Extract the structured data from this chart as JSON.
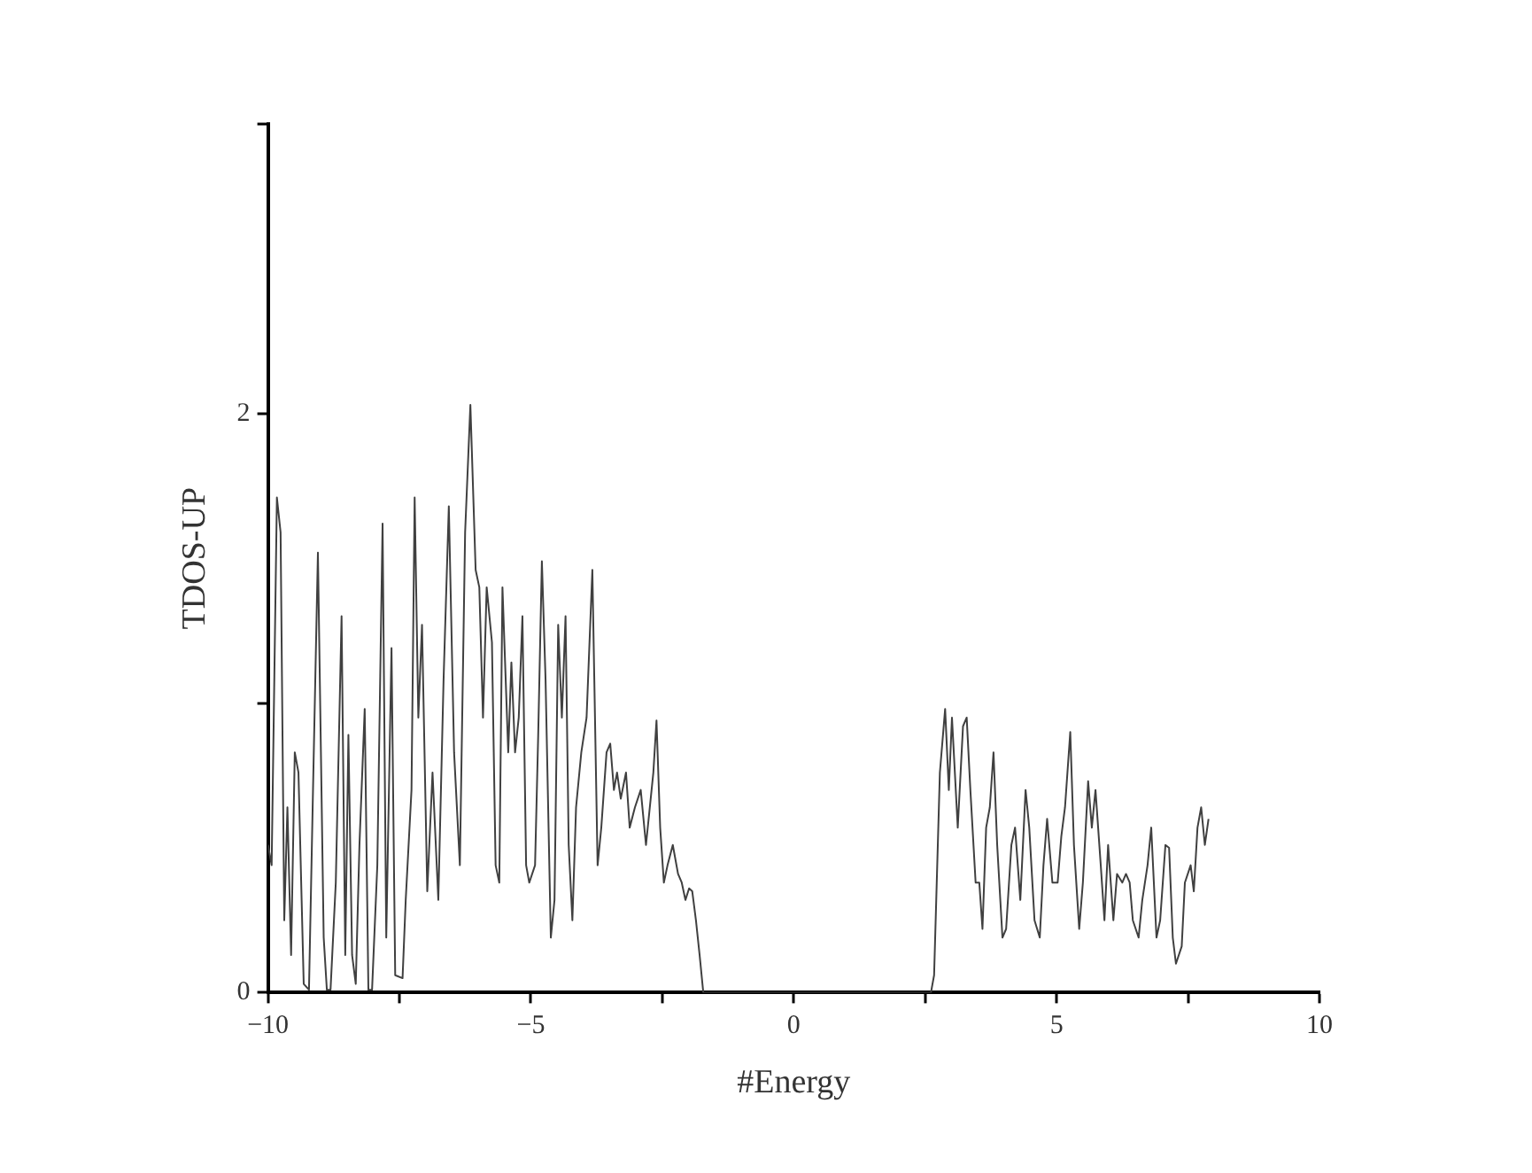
{
  "chart_data": {
    "type": "line",
    "xlabel": "#Energy",
    "ylabel": "TDOS-UP",
    "xlim": [
      -10,
      10
    ],
    "xticks": [
      -10,
      {
        "value": -7.5,
        "label": null
      },
      -5,
      {
        "value": -2.5,
        "label": null
      },
      0,
      {
        "value": 2.5,
        "label": null
      },
      5,
      {
        "value": 7.5,
        "label": null
      },
      10
    ],
    "ylim": [
      0,
      3
    ],
    "yticks": [
      0,
      {
        "value": 1,
        "label": null
      },
      2,
      {
        "value": 3,
        "label": null
      }
    ],
    "grid": false,
    "legend": false,
    "marker": "none",
    "line_style": "solid",
    "series": [
      {
        "color": "#404040",
        "x": [
          -10.0,
          -9.93,
          -9.83,
          -9.76,
          -9.69,
          -9.63,
          -9.56,
          -9.49,
          -9.42,
          -9.32,
          -9.22,
          -9.15,
          -9.05,
          -8.94,
          -8.88,
          -8.81,
          -8.71,
          -8.6,
          -8.53,
          -8.47,
          -8.4,
          -8.33,
          -8.26,
          -8.16,
          -8.09,
          -8.02,
          -7.92,
          -7.82,
          -7.75,
          -7.65,
          -7.58,
          -7.44,
          -7.38,
          -7.27,
          -7.21,
          -7.14,
          -7.07,
          -6.97,
          -6.87,
          -6.76,
          -6.66,
          -6.56,
          -6.46,
          -6.35,
          -6.25,
          -6.15,
          -6.05,
          -5.98,
          -5.91,
          -5.84,
          -5.74,
          -5.67,
          -5.6,
          -5.54,
          -5.43,
          -5.37,
          -5.3,
          -5.23,
          -5.16,
          -5.09,
          -5.03,
          -4.92,
          -4.86,
          -4.79,
          -4.72,
          -4.62,
          -4.55,
          -4.48,
          -4.41,
          -4.34,
          -4.28,
          -4.21,
          -4.14,
          -4.04,
          -3.94,
          -3.83,
          -3.73,
          -3.66,
          -3.56,
          -3.49,
          -3.42,
          -3.36,
          -3.29,
          -3.19,
          -3.12,
          -3.02,
          -2.91,
          -2.81,
          -2.67,
          -2.61,
          -2.54,
          -2.47,
          -2.4,
          -2.3,
          -2.2,
          -2.13,
          -2.06,
          -1.99,
          -1.93,
          -1.86,
          -1.79,
          -1.72,
          2.61,
          2.67,
          2.78,
          2.88,
          2.95,
          3.01,
          3.12,
          3.22,
          3.29,
          3.36,
          3.46,
          3.53,
          3.59,
          3.66,
          3.73,
          3.8,
          3.87,
          3.97,
          4.04,
          4.14,
          4.21,
          4.31,
          4.41,
          4.48,
          4.58,
          4.68,
          4.75,
          4.82,
          4.92,
          5.02,
          5.09,
          5.16,
          5.26,
          5.33,
          5.43,
          5.5,
          5.6,
          5.67,
          5.74,
          5.84,
          5.91,
          5.98,
          6.08,
          6.15,
          6.25,
          6.32,
          6.39,
          6.45,
          6.56,
          6.63,
          6.73,
          6.8,
          6.9,
          6.97,
          7.07,
          7.14,
          7.21,
          7.27,
          7.38,
          7.44,
          7.55,
          7.61,
          7.68,
          7.75,
          7.82,
          7.89
        ],
        "values": [
          0.51,
          0.44,
          1.71,
          1.59,
          0.25,
          0.64,
          0.13,
          0.83,
          0.76,
          0.03,
          0.01,
          0.64,
          1.52,
          0.19,
          0.01,
          0.01,
          0.38,
          1.3,
          0.13,
          0.89,
          0.13,
          0.03,
          0.51,
          0.98,
          0.01,
          0.01,
          0.44,
          1.62,
          0.19,
          1.19,
          0.06,
          0.05,
          0.32,
          0.7,
          1.71,
          0.95,
          1.27,
          0.35,
          0.76,
          0.32,
          1.08,
          1.68,
          0.83,
          0.44,
          1.59,
          2.03,
          1.46,
          1.4,
          0.95,
          1.4,
          1.21,
          0.44,
          0.38,
          1.4,
          0.83,
          1.14,
          0.83,
          0.95,
          1.3,
          0.44,
          0.38,
          0.44,
          0.89,
          1.49,
          1.08,
          0.19,
          0.32,
          1.27,
          0.95,
          1.3,
          0.51,
          0.25,
          0.64,
          0.83,
          0.95,
          1.46,
          0.44,
          0.57,
          0.83,
          0.86,
          0.7,
          0.76,
          0.67,
          0.76,
          0.57,
          0.64,
          0.7,
          0.51,
          0.76,
          0.94,
          0.57,
          0.38,
          0.44,
          0.51,
          0.41,
          0.38,
          0.32,
          0.36,
          0.35,
          0.25,
          0.13,
          0,
          0,
          0.06,
          0.76,
          0.98,
          0.7,
          0.95,
          0.57,
          0.92,
          0.95,
          0.7,
          0.38,
          0.38,
          0.22,
          0.57,
          0.64,
          0.83,
          0.51,
          0.19,
          0.22,
          0.51,
          0.57,
          0.32,
          0.7,
          0.57,
          0.25,
          0.19,
          0.44,
          0.6,
          0.38,
          0.38,
          0.54,
          0.64,
          0.9,
          0.51,
          0.22,
          0.38,
          0.73,
          0.57,
          0.7,
          0.44,
          0.25,
          0.51,
          0.25,
          0.41,
          0.38,
          0.41,
          0.38,
          0.25,
          0.19,
          0.32,
          0.44,
          0.57,
          0.19,
          0.25,
          0.51,
          0.5,
          0.19,
          0.1,
          0.16,
          0.38,
          0.44,
          0.35,
          0.57,
          0.64,
          0.51,
          0.6
        ]
      }
    ]
  }
}
